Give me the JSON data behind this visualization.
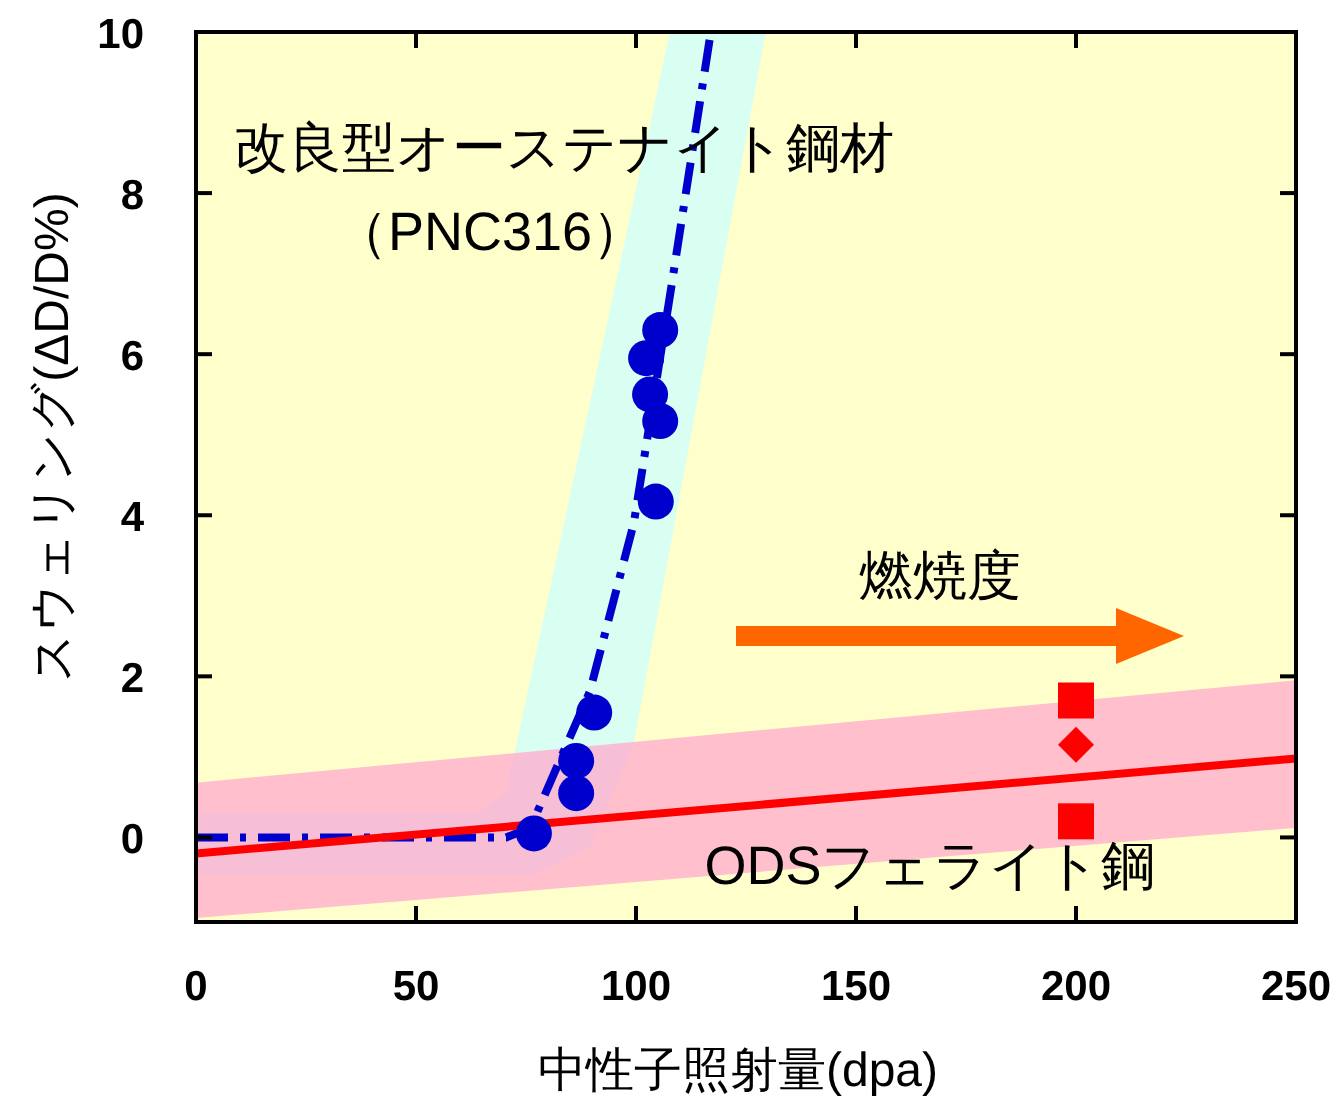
{
  "chart_data": {
    "type": "scatter",
    "xlabel": "中性子照射量(dpa)",
    "ylabel": "スウェリング(ΔD/D%)",
    "xlim": [
      0,
      250
    ],
    "ylim": [
      -1.05,
      10
    ],
    "xticks": [
      0,
      50,
      100,
      150,
      200,
      250
    ],
    "yticks": [
      0,
      2,
      4,
      6,
      8,
      10
    ],
    "grid": false,
    "annotations": [
      "改良型オーステナイト鋼材",
      "（PNC316）",
      "燃焼度",
      "ODSフェライト鋼"
    ],
    "series": [
      {
        "type": "line",
        "color": "#0000cc",
        "line_style": "dashed",
        "marker": "none",
        "x": [
          0,
          64,
          70.5,
          76,
          89.5,
          99.5,
          107.7,
          117,
          129.5
        ],
        "values": [
          0,
          0,
          0,
          0.12,
          1.81,
          3.9,
          6.72,
          10,
          null
        ],
        "lower": [
          -0.48,
          -0.48,
          -0.48,
          -0.48,
          -0.12,
          1.17,
          3.58,
          6.32,
          10
        ],
        "upper": [
          0.3,
          0.3,
          0.57,
          1.96,
          5.39,
          7.92,
          10,
          10,
          10
        ]
      },
      {
        "color": "#0000cc",
        "marker": "circle",
        "x": [
          76.8,
          86.4,
          86.4,
          90.5,
          104.5,
          105.5,
          103.2,
          102.3,
          105.5
        ],
        "values": [
          0.05,
          0.55,
          0.95,
          1.55,
          4.17,
          5.17,
          5.5,
          5.95,
          6.3
        ]
      },
      {
        "type": "line",
        "color": "#ff0000",
        "line_style": "solid",
        "marker": "none",
        "x": [
          0,
          250
        ],
        "values": [
          -0.2,
          0.98
        ],
        "lower": [
          -1.0,
          0.12
        ],
        "upper": [
          0.68,
          1.95
        ]
      },
      {
        "color": "#ff0000",
        "marker": "square",
        "x": [
          200,
          200
        ],
        "values": [
          1.7,
          0.2
        ]
      },
      {
        "color": "#ff0000",
        "marker": "diamond",
        "x": [
          200
        ],
        "values": [
          1.15
        ]
      }
    ]
  }
}
